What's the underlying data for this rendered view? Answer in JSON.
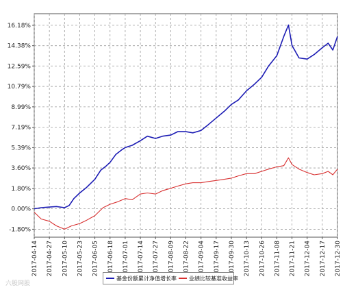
{
  "chart_data": {
    "type": "line",
    "title": "",
    "xlabel": "",
    "ylabel": "",
    "x_ticks": [
      "2017-04-14",
      "2017-04-27",
      "2017-05-10",
      "2017-05-23",
      "2017-06-05",
      "2017-06-18",
      "2017-07-01",
      "2017-07-14",
      "2017-07-27",
      "2017-08-09",
      "2017-08-22",
      "2017-09-04",
      "2017-09-17",
      "2017-09-30",
      "2017-10-13",
      "2017-10-26",
      "2017-11-08",
      "2017-11-21",
      "2017-12-04",
      "2017-12-17",
      "2017-12-30"
    ],
    "y_ticks": [
      "-1.80%",
      "0.00%",
      "1.80%",
      "3.60%",
      "5.39%",
      "7.19%",
      "8.99%",
      "10.79%",
      "12.59%",
      "14.38%",
      "16.18%"
    ],
    "ylim": [
      -2.5,
      17.2
    ],
    "grid": true,
    "legend_position": "bottom-center",
    "series": [
      {
        "name": "基金份额累计净值增长率",
        "color": "#1c1cb4",
        "points": [
          [
            "2017-04-14",
            0.0
          ],
          [
            "2017-04-20",
            0.1
          ],
          [
            "2017-04-27",
            0.15
          ],
          [
            "2017-05-03",
            0.2
          ],
          [
            "2017-05-10",
            0.1
          ],
          [
            "2017-05-14",
            0.3
          ],
          [
            "2017-05-18",
            0.9
          ],
          [
            "2017-05-23",
            1.4
          ],
          [
            "2017-05-29",
            1.9
          ],
          [
            "2017-06-05",
            2.6
          ],
          [
            "2017-06-10",
            3.4
          ],
          [
            "2017-06-15",
            3.8
          ],
          [
            "2017-06-18",
            4.1
          ],
          [
            "2017-06-23",
            4.8
          ],
          [
            "2017-06-28",
            5.2
          ],
          [
            "2017-07-01",
            5.4
          ],
          [
            "2017-07-07",
            5.6
          ],
          [
            "2017-07-14",
            6.0
          ],
          [
            "2017-07-20",
            6.4
          ],
          [
            "2017-07-27",
            6.2
          ],
          [
            "2017-08-02",
            6.4
          ],
          [
            "2017-08-09",
            6.5
          ],
          [
            "2017-08-15",
            6.8
          ],
          [
            "2017-08-22",
            6.8
          ],
          [
            "2017-08-28",
            6.7
          ],
          [
            "2017-09-04",
            6.9
          ],
          [
            "2017-09-10",
            7.4
          ],
          [
            "2017-09-17",
            8.0
          ],
          [
            "2017-09-24",
            8.6
          ],
          [
            "2017-09-30",
            9.2
          ],
          [
            "2017-10-06",
            9.6
          ],
          [
            "2017-10-13",
            10.4
          ],
          [
            "2017-10-20",
            11.0
          ],
          [
            "2017-10-26",
            11.6
          ],
          [
            "2017-11-01",
            12.6
          ],
          [
            "2017-11-08",
            13.5
          ],
          [
            "2017-11-14",
            15.2
          ],
          [
            "2017-11-18",
            16.2
          ],
          [
            "2017-11-21",
            14.4
          ],
          [
            "2017-11-27",
            13.3
          ],
          [
            "2017-12-04",
            13.2
          ],
          [
            "2017-12-10",
            13.6
          ],
          [
            "2017-12-17",
            14.2
          ],
          [
            "2017-12-22",
            14.6
          ],
          [
            "2017-12-26",
            14.0
          ],
          [
            "2017-12-30",
            15.2
          ]
        ]
      },
      {
        "name": "业绩比较基准收益率",
        "color": "#d83030",
        "points": [
          [
            "2017-04-14",
            -0.3
          ],
          [
            "2017-04-20",
            -0.9
          ],
          [
            "2017-04-27",
            -1.1
          ],
          [
            "2017-05-03",
            -1.5
          ],
          [
            "2017-05-10",
            -1.8
          ],
          [
            "2017-05-16",
            -1.5
          ],
          [
            "2017-05-23",
            -1.3
          ],
          [
            "2017-05-29",
            -1.0
          ],
          [
            "2017-06-05",
            -0.6
          ],
          [
            "2017-06-12",
            0.1
          ],
          [
            "2017-06-18",
            0.4
          ],
          [
            "2017-06-24",
            0.6
          ],
          [
            "2017-07-01",
            0.9
          ],
          [
            "2017-07-07",
            0.8
          ],
          [
            "2017-07-14",
            1.3
          ],
          [
            "2017-07-20",
            1.4
          ],
          [
            "2017-07-27",
            1.3
          ],
          [
            "2017-08-02",
            1.6
          ],
          [
            "2017-08-09",
            1.8
          ],
          [
            "2017-08-15",
            2.0
          ],
          [
            "2017-08-22",
            2.2
          ],
          [
            "2017-08-28",
            2.3
          ],
          [
            "2017-09-04",
            2.3
          ],
          [
            "2017-09-10",
            2.4
          ],
          [
            "2017-09-17",
            2.5
          ],
          [
            "2017-09-24",
            2.6
          ],
          [
            "2017-09-30",
            2.7
          ],
          [
            "2017-10-06",
            2.9
          ],
          [
            "2017-10-13",
            3.1
          ],
          [
            "2017-10-20",
            3.1
          ],
          [
            "2017-10-26",
            3.3
          ],
          [
            "2017-11-01",
            3.5
          ],
          [
            "2017-11-08",
            3.7
          ],
          [
            "2017-11-14",
            3.8
          ],
          [
            "2017-11-18",
            4.5
          ],
          [
            "2017-11-21",
            3.9
          ],
          [
            "2017-11-27",
            3.5
          ],
          [
            "2017-12-04",
            3.2
          ],
          [
            "2017-12-10",
            3.0
          ],
          [
            "2017-12-17",
            3.1
          ],
          [
            "2017-12-22",
            3.3
          ],
          [
            "2017-12-26",
            3.0
          ],
          [
            "2017-12-30",
            3.5
          ]
        ]
      }
    ]
  },
  "legend": {
    "fund_label": "基金份额累计净值增长率",
    "benchmark_label": "业绩比较基准收益率"
  },
  "watermark": "六股网股"
}
